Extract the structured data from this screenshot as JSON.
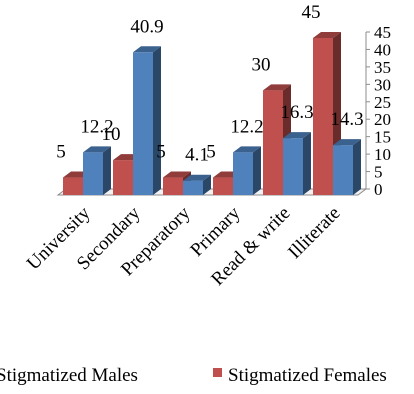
{
  "chart_data": {
    "type": "bar",
    "style": "3d-clustered",
    "categories": [
      "University",
      "Secondary",
      "Preparatory",
      "Primary",
      "Read & write",
      "Illiterate"
    ],
    "series": [
      {
        "name": "Stigmatized Females",
        "color": "#c0504d",
        "values": [
          5,
          10,
          5,
          5,
          30,
          45
        ]
      },
      {
        "name": "Stigmatized Males",
        "color": "#4f81bd",
        "values": [
          12.2,
          40.9,
          4.1,
          12.2,
          16.3,
          14.3
        ]
      }
    ],
    "data_labels": {
      "Stigmatized Females": [
        "5",
        "10",
        "5",
        "5",
        "30",
        "45"
      ],
      "Stigmatized Males": [
        "12.2",
        "40.9",
        "4.1",
        "12.2",
        "16.3",
        "14.3"
      ]
    },
    "ylim": [
      0,
      45
    ],
    "yticks": [
      "0",
      "5",
      "10",
      "15",
      "20",
      "25",
      "30",
      "35",
      "40",
      "45"
    ],
    "yaxis_position": "right",
    "grid": false,
    "legend_position": "bottom"
  }
}
